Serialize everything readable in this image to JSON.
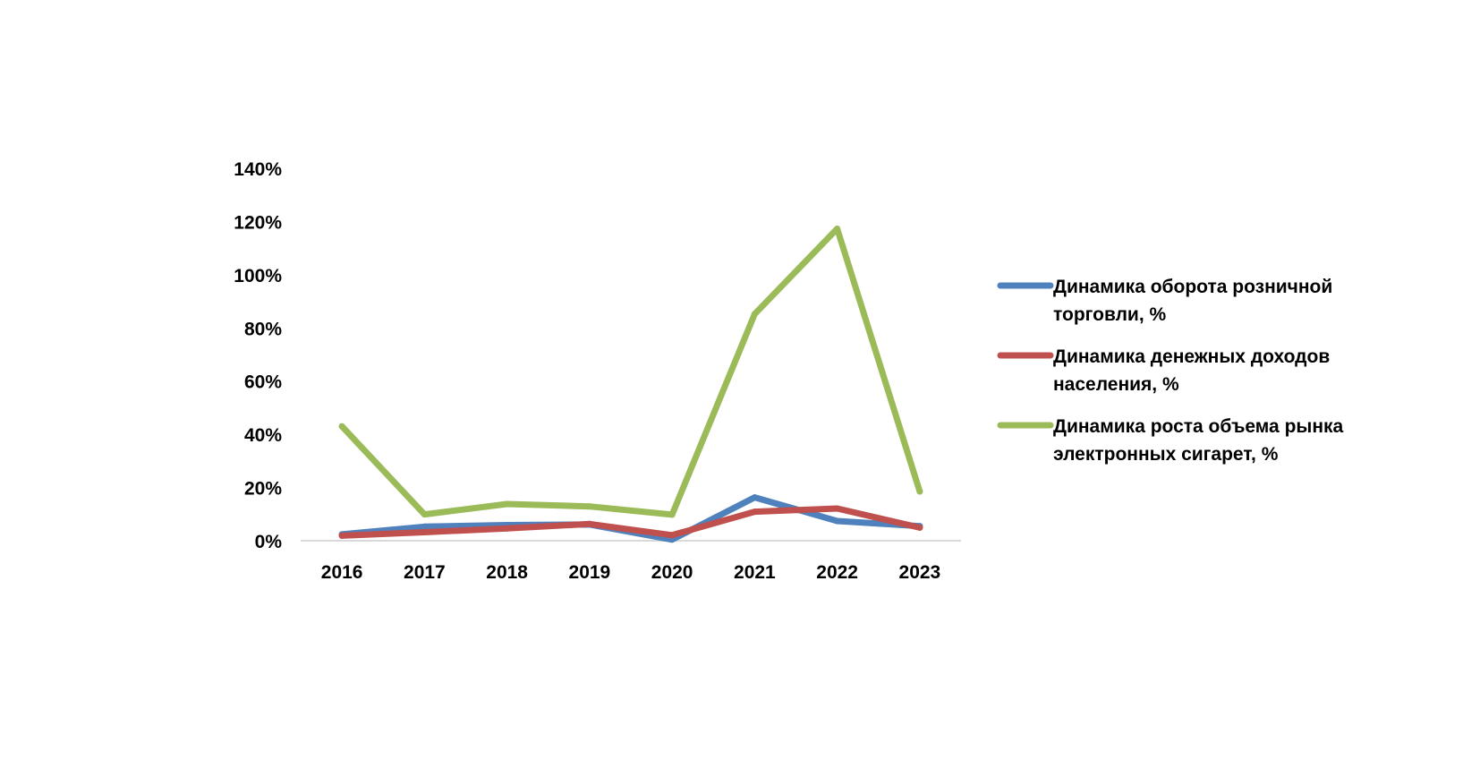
{
  "chart_data": {
    "type": "line",
    "categories": [
      "2016",
      "2017",
      "2018",
      "2019",
      "2020",
      "2021",
      "2022",
      "2023"
    ],
    "ylim": [
      0,
      1.4
    ],
    "yticks": [
      "0%",
      "20%",
      "40%",
      "60%",
      "80%",
      "100%",
      "120%",
      "140%"
    ],
    "y_format": "percent",
    "grid": false,
    "legend_position": "right",
    "series": [
      {
        "name": "Динамика оборота розничной торговли, %",
        "name_lines": [
          "Динамика оборота розничной",
          "торговли, %"
        ],
        "color": "#4F81BD",
        "values": [
          0.024,
          0.053,
          0.059,
          0.061,
          0.004,
          0.163,
          0.074,
          0.055
        ]
      },
      {
        "name": "Динамика денежных доходов населения, %",
        "name_lines": [
          "Динамика денежных доходов",
          "населения, %"
        ],
        "color": "#C0504D",
        "values": [
          0.019,
          0.032,
          0.046,
          0.063,
          0.021,
          0.109,
          0.121,
          0.049
        ]
      },
      {
        "name": "Динамика роста объема рынка электронных сигарет, %",
        "name_lines": [
          "Динамика роста объема рынка",
          "электронных сигарет, %"
        ],
        "color": "#9BBB59",
        "values": [
          0.43,
          0.099,
          0.138,
          0.129,
          0.098,
          0.852,
          1.173,
          0.185
        ]
      }
    ]
  }
}
